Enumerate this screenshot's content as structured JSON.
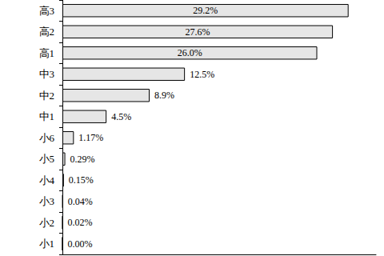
{
  "chart_data": {
    "type": "bar",
    "orientation": "horizontal",
    "categories": [
      "高3",
      "高2",
      "高1",
      "中3",
      "中2",
      "中1",
      "小6",
      "小5",
      "小4",
      "小3",
      "小2",
      "小1"
    ],
    "values": [
      29.2,
      27.6,
      26.0,
      12.5,
      8.9,
      4.5,
      1.17,
      0.29,
      0.15,
      0.04,
      0.02,
      0
    ],
    "value_labels": [
      "29.2%",
      "27.6%",
      "26.0%",
      "12.5%",
      "8.9%",
      "4.5%",
      "1.17%",
      "0.29%",
      "0.15%",
      "0.04%",
      "0.02%",
      "0.00%"
    ],
    "color": "#e6e6e6",
    "xlim": [
      0,
      32
    ],
    "data_labels": true,
    "tick_labels": "y",
    "grid": false
  }
}
